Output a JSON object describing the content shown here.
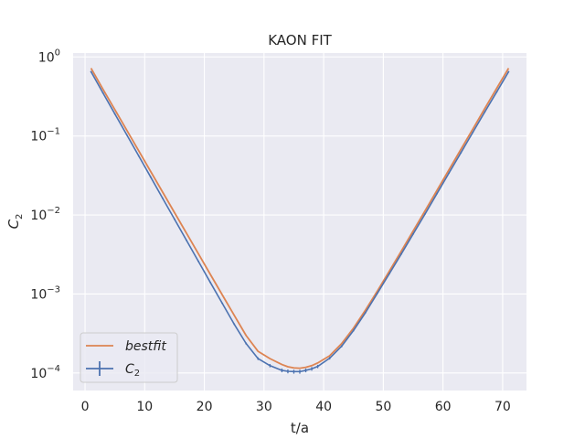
{
  "chart_data": {
    "type": "line",
    "title": "KAON FIT",
    "xlabel": "t/a",
    "ylabel": "C",
    "ylabel_sub": "2",
    "yscale": "log",
    "xlim": [
      -2,
      74
    ],
    "ylim": [
      6e-05,
      1.12
    ],
    "xticks": [
      0,
      10,
      20,
      30,
      40,
      50,
      60,
      70
    ],
    "yticks": [
      {
        "value": 1,
        "base": "10",
        "exp": "0"
      },
      {
        "value": 0.1,
        "base": "10",
        "exp": "−1"
      },
      {
        "value": 0.01,
        "base": "10",
        "exp": "−2"
      },
      {
        "value": 0.001,
        "base": "10",
        "exp": "−3"
      },
      {
        "value": 0.0001,
        "base": "10",
        "exp": "−4"
      }
    ],
    "grid": true,
    "legend_position": "lower-left",
    "series": [
      {
        "name": "bestfit",
        "style": "line",
        "color": "#dd8452",
        "x": [
          1,
          3,
          5,
          7,
          9,
          11,
          13,
          15,
          17,
          19,
          21,
          23,
          25,
          27,
          29,
          31,
          33,
          34,
          35,
          36,
          37,
          38,
          39,
          41,
          43,
          45,
          47,
          49,
          51,
          53,
          55,
          57,
          59,
          61,
          63,
          65,
          67,
          69,
          71
        ],
        "y": [
          0.72,
          0.39,
          0.215,
          0.118,
          0.0648,
          0.0355,
          0.0195,
          0.0107,
          0.00588,
          0.00323,
          0.00177,
          0.000975,
          0.000538,
          0.000298,
          0.000188,
          0.000152,
          0.000128,
          0.00012,
          0.000116,
          0.000115,
          0.000118,
          0.000124,
          0.000134,
          0.000165,
          0.000235,
          0.00037,
          0.000625,
          0.00109,
          0.00194,
          0.00348,
          0.00627,
          0.0113,
          0.0205,
          0.0372,
          0.0675,
          0.122,
          0.222,
          0.4,
          0.72
        ]
      },
      {
        "name": "C",
        "name_sub": "2",
        "style": "errorbar",
        "color": "#4c72b0",
        "x": [
          1,
          3,
          5,
          7,
          9,
          11,
          13,
          15,
          17,
          19,
          21,
          23,
          25,
          27,
          29,
          31,
          33,
          34,
          35,
          36,
          37,
          38,
          39,
          41,
          43,
          45,
          47,
          49,
          51,
          53,
          55,
          57,
          59,
          61,
          63,
          65,
          67,
          69,
          71
        ],
        "y": [
          0.65,
          0.35,
          0.19,
          0.103,
          0.0558,
          0.0302,
          0.0163,
          0.00883,
          0.00478,
          0.00259,
          0.0014,
          0.000762,
          0.000415,
          0.000236,
          0.000152,
          0.000124,
          0.000108,
          0.000105,
          0.000104,
          0.000104,
          0.000108,
          0.000113,
          0.000121,
          0.000154,
          0.000218,
          0.000345,
          0.00058,
          0.00102,
          0.0018,
          0.0032,
          0.00575,
          0.0103,
          0.0187,
          0.0339,
          0.0612,
          0.111,
          0.201,
          0.36,
          0.65
        ],
        "yerr": [
          0.01,
          0.006,
          0.003,
          0.0015,
          0.0009,
          0.0005,
          0.00028,
          0.00015,
          8e-05,
          4.5e-05,
          2.5e-05,
          1.4e-05,
          9e-06,
          7e-06,
          6e-06,
          6e-06,
          6e-06,
          6e-06,
          6e-06,
          6e-06,
          6e-06,
          6e-06,
          6e-06,
          6e-06,
          7e-06,
          9e-06,
          1.2e-05,
          1.8e-05,
          3e-05,
          5e-05,
          9e-05,
          0.00016,
          0.0003,
          0.0005,
          0.0009,
          0.0016,
          0.003,
          0.005,
          0.009
        ]
      }
    ]
  }
}
